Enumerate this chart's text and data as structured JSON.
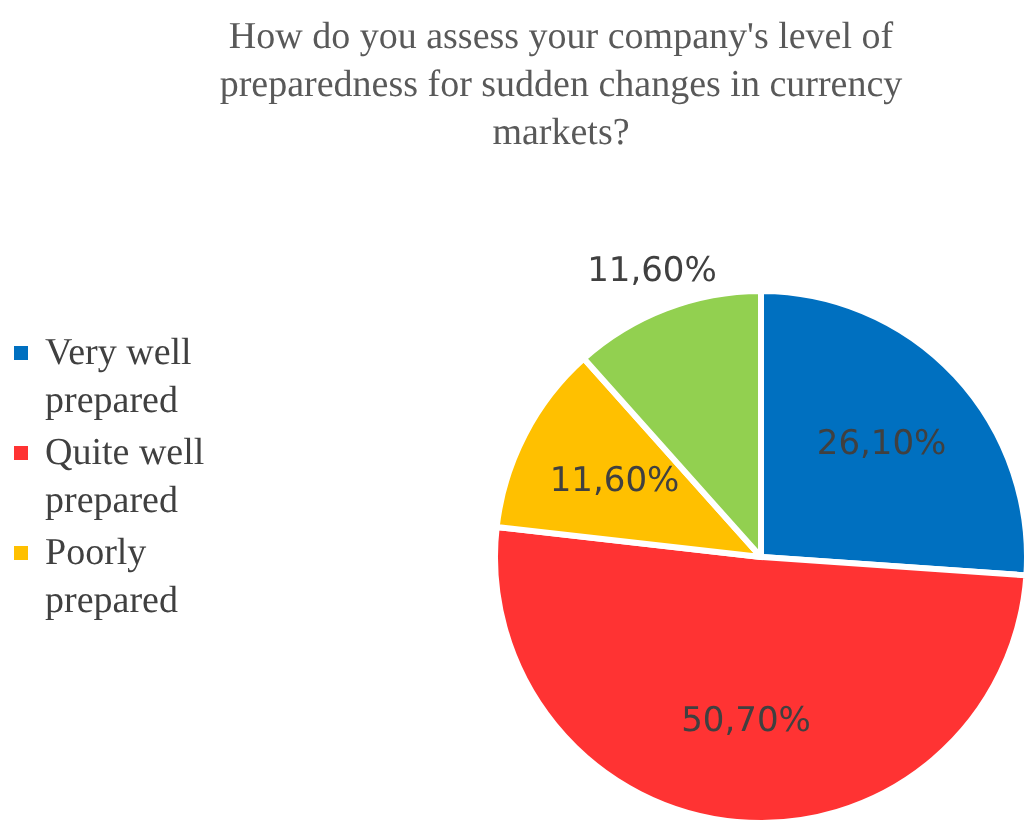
{
  "chart_data": {
    "type": "pie",
    "title": "How do you assess your company's level of preparedness for sudden changes in currency markets?",
    "categories": [
      "Very well prepared",
      "Quite well prepared",
      "Poorly prepared",
      null
    ],
    "values": [
      26.1,
      50.7,
      11.6,
      11.6
    ],
    "colors": [
      "#0070c0",
      "#ff3333",
      "#ffc000",
      "#92d050"
    ],
    "value_labels": [
      "26,10%",
      "50,70%",
      "11,60%",
      "11,60%"
    ],
    "legend": "left"
  }
}
